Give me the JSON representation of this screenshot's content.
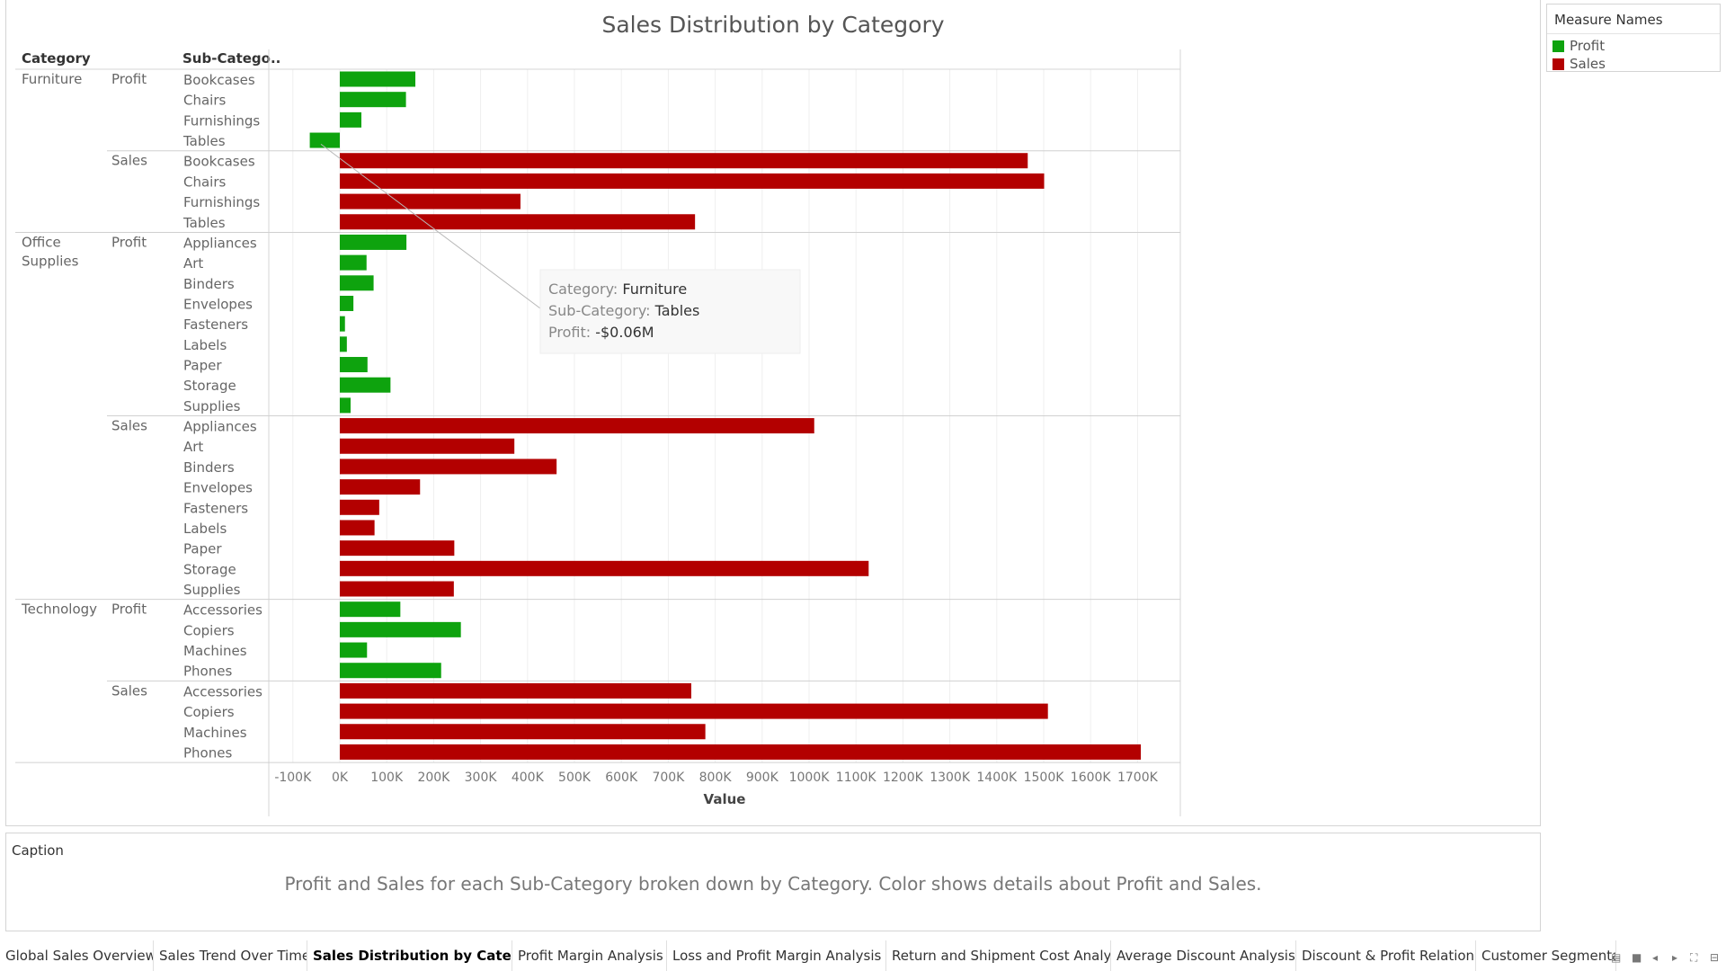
{
  "chart_data": {
    "type": "bar",
    "orientation": "horizontal",
    "title": "Sales Distribution by Category",
    "row_headers": [
      "Category",
      "Sub-Catego.."
    ],
    "xlabel": "Value",
    "xlim": [
      -150000,
      1800000
    ],
    "x_ticks": [
      "-100K",
      "0K",
      "100K",
      "200K",
      "300K",
      "400K",
      "500K",
      "600K",
      "700K",
      "800K",
      "900K",
      "1000K",
      "1100K",
      "1200K",
      "1300K",
      "1400K",
      "1500K",
      "1600K",
      "1700K"
    ],
    "x_tick_values": [
      -100000,
      0,
      100000,
      200000,
      300000,
      400000,
      500000,
      600000,
      700000,
      800000,
      900000,
      1000000,
      1100000,
      1200000,
      1300000,
      1400000,
      1500000,
      1600000,
      1700000
    ],
    "groups": [
      {
        "category": "Furniture",
        "measure": "Profit",
        "subcategories": [
          "Bookcases",
          "Chairs",
          "Furnishings",
          "Tables"
        ],
        "values": [
          161000,
          141000,
          46000,
          -64000
        ]
      },
      {
        "category": "Furniture",
        "measure": "Sales",
        "subcategories": [
          "Bookcases",
          "Chairs",
          "Furnishings",
          "Tables"
        ],
        "values": [
          1466000,
          1501000,
          385000,
          757000
        ]
      },
      {
        "category": "Office Supplies",
        "measure": "Profit",
        "subcategories": [
          "Appliances",
          "Art",
          "Binders",
          "Envelopes",
          "Fasteners",
          "Labels",
          "Paper",
          "Storage",
          "Supplies"
        ],
        "values": [
          142000,
          57000,
          72000,
          29000,
          11000,
          15000,
          59000,
          108000,
          23000
        ]
      },
      {
        "category": "Office Supplies",
        "measure": "Sales",
        "subcategories": [
          "Appliances",
          "Art",
          "Binders",
          "Envelopes",
          "Fasteners",
          "Labels",
          "Paper",
          "Storage",
          "Supplies"
        ],
        "values": [
          1011000,
          372000,
          462000,
          171000,
          84000,
          74000,
          244000,
          1127000,
          243000
        ]
      },
      {
        "category": "Technology",
        "measure": "Profit",
        "subcategories": [
          "Accessories",
          "Copiers",
          "Machines",
          "Phones"
        ],
        "values": [
          129000,
          258000,
          58000,
          216000
        ]
      },
      {
        "category": "Technology",
        "measure": "Sales",
        "subcategories": [
          "Accessories",
          "Copiers",
          "Machines",
          "Phones"
        ],
        "values": [
          749000,
          1509000,
          779000,
          1707000
        ]
      }
    ],
    "series": [
      {
        "name": "Profit",
        "color": "#0ea30e"
      },
      {
        "name": "Sales",
        "color": "#b30000"
      }
    ],
    "grid": true,
    "legend_position": "right",
    "tooltip": {
      "category_label": "Category:",
      "category_value": "Furniture",
      "subcategory_label": "Sub-Category:",
      "subcategory_value": "Tables",
      "profit_label": "Profit:",
      "profit_value": "-$0.06M",
      "target_group": 0,
      "target_row": 3
    }
  },
  "legend": {
    "title": "Measure Names",
    "items": [
      {
        "label": "Profit",
        "color": "#0ea30e"
      },
      {
        "label": "Sales",
        "color": "#b30000"
      }
    ]
  },
  "caption": {
    "label": "Caption",
    "text": "Profit and Sales for each Sub-Category broken down by Category.  Color shows details about Profit and Sales."
  },
  "tabs": [
    {
      "label": "Global Sales Overview",
      "active": false
    },
    {
      "label": "Sales Trend Over Time",
      "active": false
    },
    {
      "label": "Sales Distribution by Category",
      "active": true
    },
    {
      "label": "Profit Margin Analysis",
      "active": false
    },
    {
      "label": "Loss and Profit Margin Analysis",
      "active": false
    },
    {
      "label": "Return and Shipment Cost Analysis",
      "active": false
    },
    {
      "label": "Average Discount Analysis",
      "active": false
    },
    {
      "label": "Discount & Profit Relation",
      "active": false
    },
    {
      "label": "Customer Segmenta",
      "active": false
    }
  ],
  "tab_controls": [
    {
      "name": "grid-view-icon",
      "glyph": "▤"
    },
    {
      "name": "filmstrip-view-icon",
      "glyph": "■"
    },
    {
      "name": "prev-sheet-icon",
      "glyph": "◂"
    },
    {
      "name": "next-sheet-icon",
      "glyph": "▸"
    },
    {
      "name": "fullscreen-icon",
      "glyph": "⛶"
    },
    {
      "name": "presentation-icon",
      "glyph": "⊟"
    }
  ]
}
